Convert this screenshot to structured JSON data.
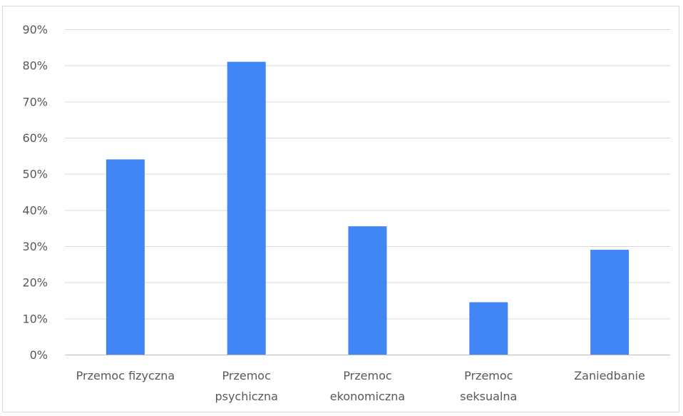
{
  "chart_data": {
    "type": "bar",
    "categories": [
      [
        "Przemoc fizyczna"
      ],
      [
        "Przemoc",
        "psychiczna"
      ],
      [
        "Przemoc",
        "ekonomiczna"
      ],
      [
        "Przemoc",
        "seksualna"
      ],
      [
        "Zaniedbanie"
      ]
    ],
    "values": [
      54,
      81,
      35.5,
      14.5,
      29
    ],
    "ylim": [
      0,
      90
    ],
    "yticks": [
      "0%",
      "10%",
      "20%",
      "30%",
      "40%",
      "50%",
      "60%",
      "70%",
      "80%",
      "90%"
    ],
    "grid": true,
    "title": "",
    "xlabel": "",
    "ylabel": ""
  },
  "colors": {
    "bar": "#4285f4"
  }
}
